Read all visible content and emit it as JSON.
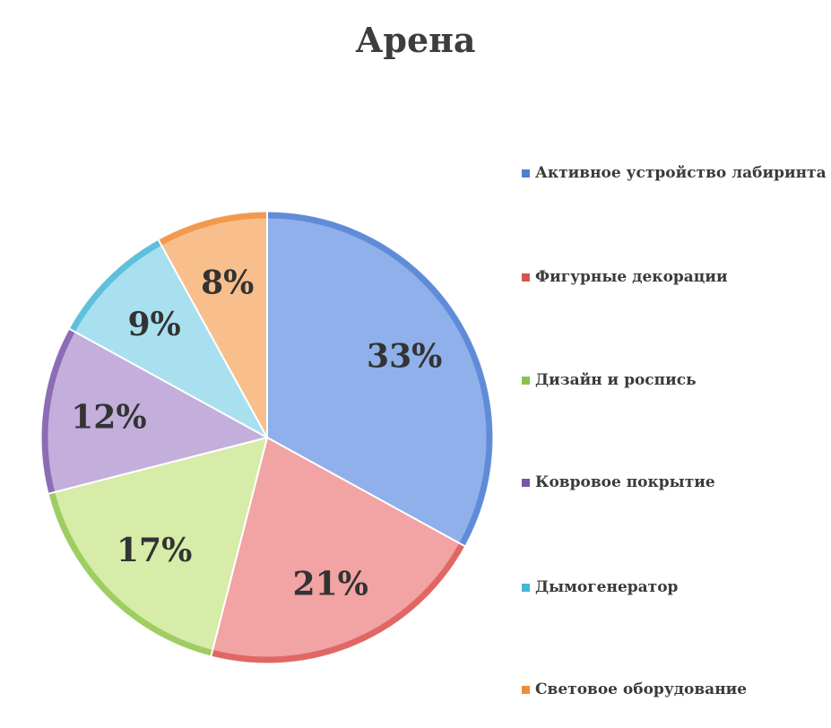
{
  "chart_data": {
    "type": "pie",
    "title": "Арена",
    "legend_position": "right",
    "slices": [
      {
        "name": "Активное устройство лабиринта",
        "value": 33,
        "label": "33%",
        "color": "#8fb0ea",
        "edge": "#4f7fd2"
      },
      {
        "name": "Фигурные декорации",
        "value": 21,
        "label": "21%",
        "color": "#f2a3a3",
        "edge": "#d9534f"
      },
      {
        "name": "Дизайн и роспись",
        "value": 17,
        "label": "17%",
        "color": "#d6eca8",
        "edge": "#8bc34a"
      },
      {
        "name": "Ковровое покрытие",
        "value": 12,
        "label": "12%",
        "color": "#c4aedc",
        "edge": "#7a56a8"
      },
      {
        "name": "Дымогенератор",
        "value": 9,
        "label": "9%",
        "color": "#a8e0f0",
        "edge": "#46b6d6"
      },
      {
        "name": "Световое оборудование",
        "value": 8,
        "label": "8%",
        "color": "#f8bf8c",
        "edge": "#ef8c3a"
      }
    ]
  }
}
